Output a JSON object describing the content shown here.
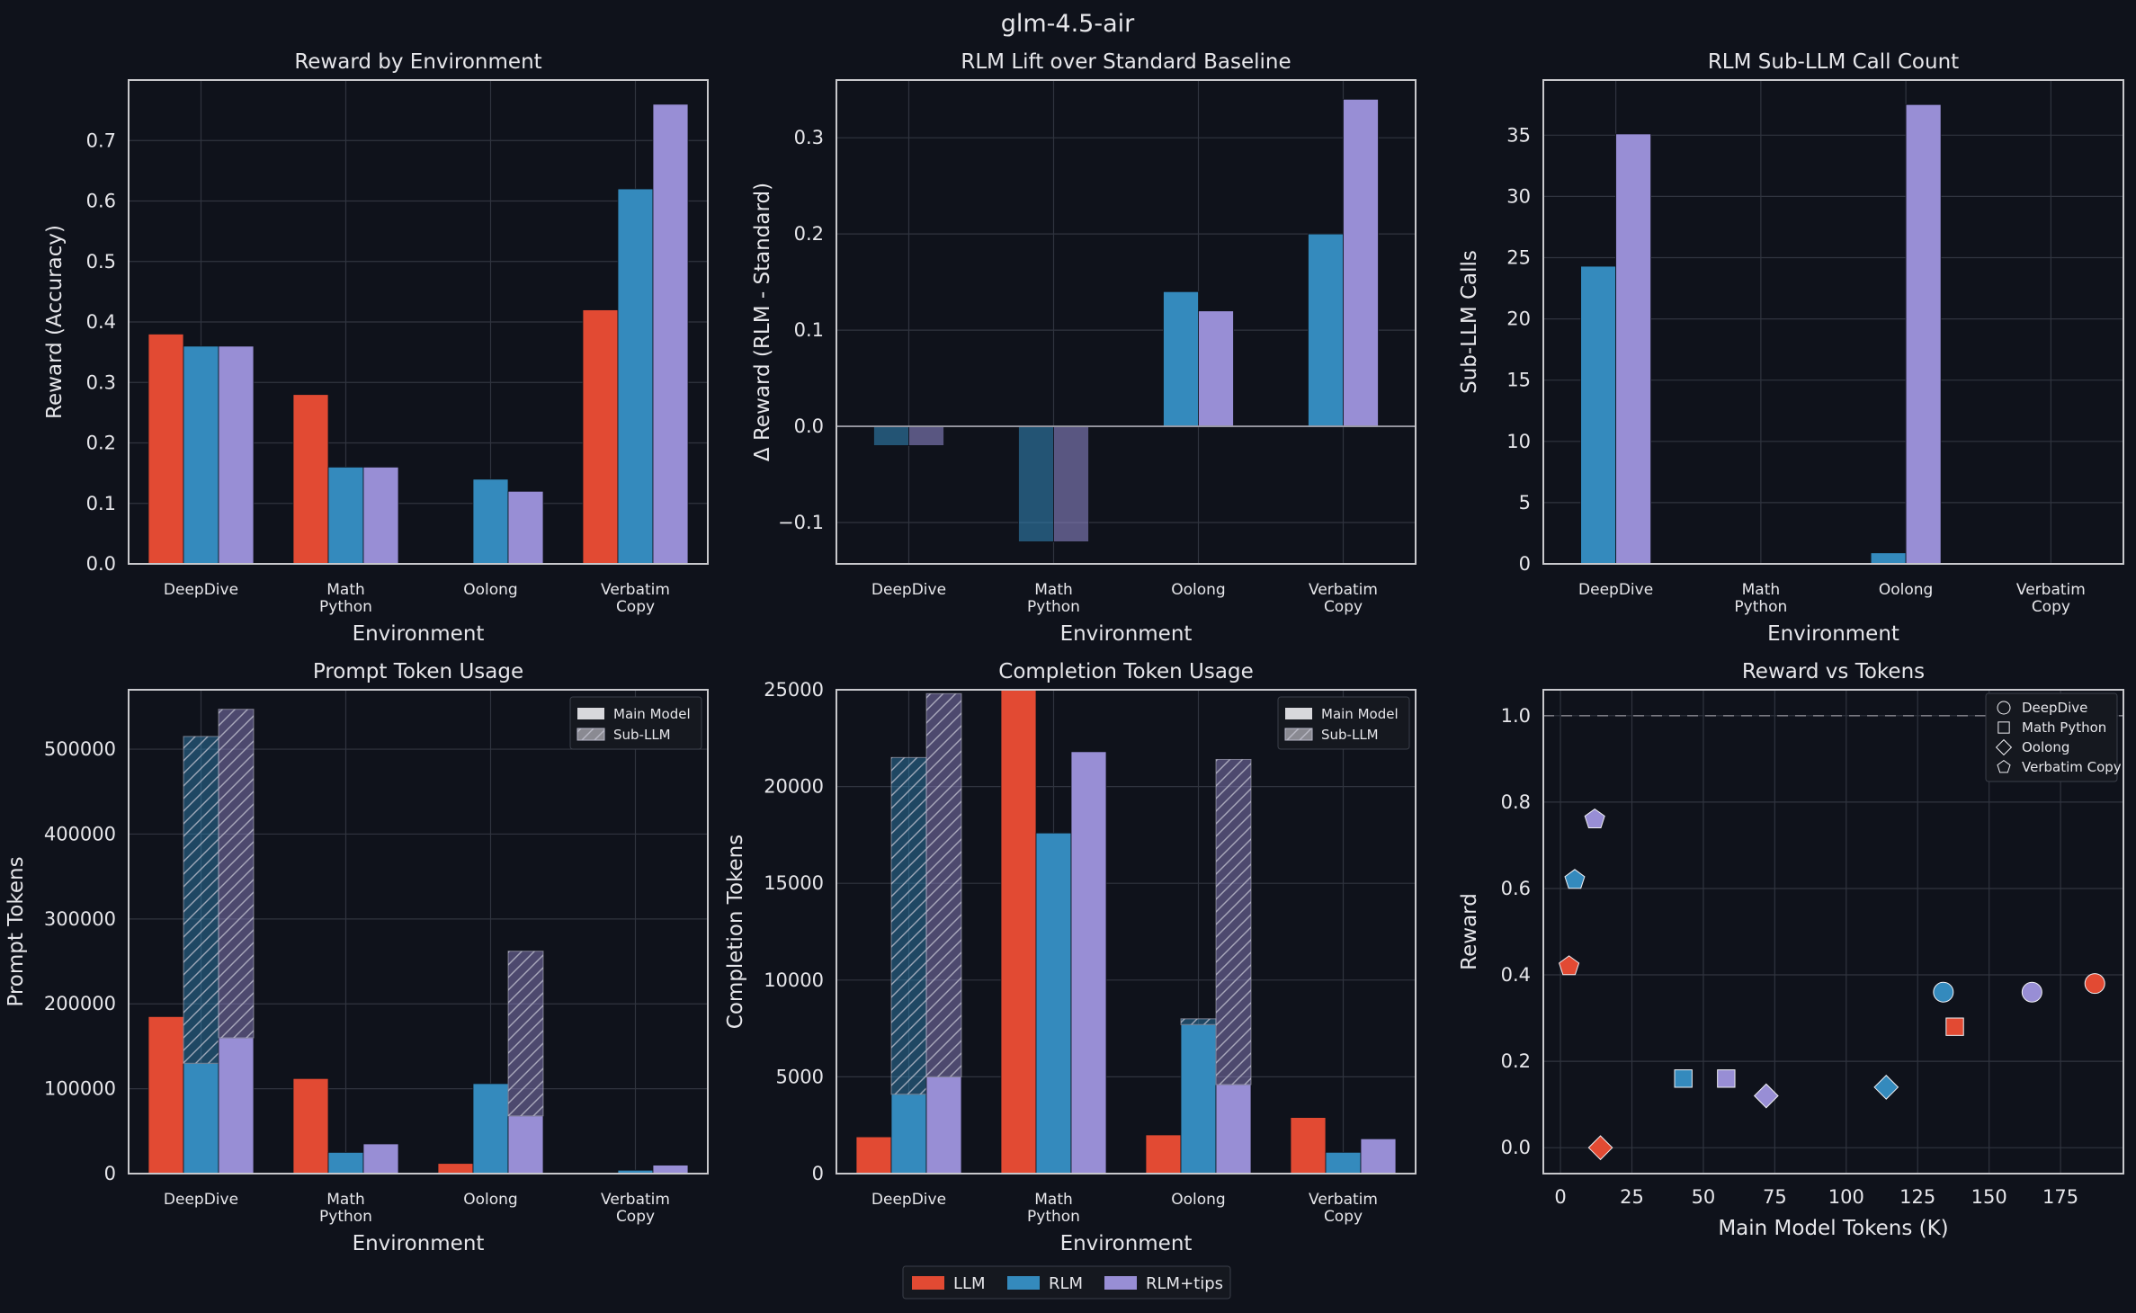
{
  "figure_title": "glm-4.5-air",
  "colors": {
    "LLM": "#e24a33",
    "RLM": "#348abd",
    "RLM+tips": "#988ed5",
    "background": "#0f121b",
    "grid": "#30343f"
  },
  "bottom_legend": {
    "entries": [
      "LLM",
      "RLM",
      "RLM+tips"
    ]
  },
  "chart_data": [
    {
      "id": "reward",
      "type": "bar",
      "title": "Reward by Environment",
      "xlabel": "Environment",
      "ylabel": "Reward (Accuracy)",
      "categories": [
        [
          "DeepDive"
        ],
        [
          "Math",
          "Python"
        ],
        [
          "Oolong"
        ],
        [
          "Verbatim",
          "Copy"
        ]
      ],
      "ylim": [
        0,
        0.8
      ],
      "yticks": [
        0.0,
        0.1,
        0.2,
        0.3,
        0.4,
        0.5,
        0.6,
        0.7
      ],
      "ytick_labels": [
        "0.0",
        "0.1",
        "0.2",
        "0.3",
        "0.4",
        "0.5",
        "0.6",
        "0.7"
      ],
      "series": [
        {
          "name": "LLM",
          "values": [
            0.38,
            0.28,
            0.0,
            0.42
          ]
        },
        {
          "name": "RLM",
          "values": [
            0.36,
            0.16,
            0.14,
            0.62
          ]
        },
        {
          "name": "RLM+tips",
          "values": [
            0.36,
            0.16,
            0.12,
            0.76
          ]
        }
      ]
    },
    {
      "id": "lift",
      "type": "bar",
      "title": "RLM Lift over Standard Baseline",
      "xlabel": "Environment",
      "ylabel": "Δ Reward (RLM - Standard)",
      "categories": [
        [
          "DeepDive"
        ],
        [
          "Math",
          "Python"
        ],
        [
          "Oolong"
        ],
        [
          "Verbatim",
          "Copy"
        ]
      ],
      "ylim": [
        -0.143,
        0.36
      ],
      "yticks": [
        -0.1,
        0.0,
        0.1,
        0.2,
        0.3
      ],
      "ytick_labels": [
        "−0.1",
        "0.0",
        "0.1",
        "0.2",
        "0.3"
      ],
      "zero_line": true,
      "series": [
        {
          "name": "RLM",
          "values": [
            -0.02,
            -0.12,
            0.14,
            0.2
          ]
        },
        {
          "name": "RLM+tips",
          "values": [
            -0.02,
            -0.12,
            0.12,
            0.34
          ]
        }
      ]
    },
    {
      "id": "subcalls",
      "type": "bar",
      "title": "RLM Sub-LLM Call Count",
      "xlabel": "Environment",
      "ylabel": "Sub-LLM Calls",
      "categories": [
        [
          "DeepDive"
        ],
        [
          "Math",
          "Python"
        ],
        [
          "Oolong"
        ],
        [
          "Verbatim",
          "Copy"
        ]
      ],
      "ylim": [
        0,
        39.5
      ],
      "yticks": [
        0,
        5,
        10,
        15,
        20,
        25,
        30,
        35
      ],
      "ytick_labels": [
        "0",
        "5",
        "10",
        "15",
        "20",
        "25",
        "30",
        "35"
      ],
      "series": [
        {
          "name": "RLM",
          "values": [
            24.3,
            0,
            0.9,
            0
          ]
        },
        {
          "name": "RLM+tips",
          "values": [
            35.1,
            0,
            37.5,
            0
          ]
        }
      ]
    },
    {
      "id": "prompt",
      "type": "bar",
      "stacked": true,
      "title": "Prompt Token Usage",
      "xlabel": "Environment",
      "ylabel": "Prompt Tokens",
      "categories": [
        [
          "DeepDive"
        ],
        [
          "Math",
          "Python"
        ],
        [
          "Oolong"
        ],
        [
          "Verbatim",
          "Copy"
        ]
      ],
      "ylim": [
        0,
        570000
      ],
      "yticks": [
        0,
        100000,
        200000,
        300000,
        400000,
        500000
      ],
      "ytick_labels": [
        "0",
        "100000",
        "200000",
        "300000",
        "400000",
        "500000"
      ],
      "legend": [
        "Main Model",
        "Sub-LLM"
      ],
      "series": [
        {
          "name": "LLM",
          "main": [
            185000,
            112000,
            12000,
            1000
          ],
          "sub": [
            0,
            0,
            0,
            0
          ]
        },
        {
          "name": "RLM",
          "main": [
            130000,
            25000,
            106000,
            4000
          ],
          "sub": [
            385000,
            0,
            0,
            0
          ]
        },
        {
          "name": "RLM+tips",
          "main": [
            160000,
            35000,
            68000,
            10000
          ],
          "sub": [
            387000,
            0,
            194000,
            0
          ]
        }
      ]
    },
    {
      "id": "completion",
      "type": "bar",
      "stacked": true,
      "title": "Completion Token Usage",
      "xlabel": "Environment",
      "ylabel": "Completion Tokens",
      "categories": [
        [
          "DeepDive"
        ],
        [
          "Math",
          "Python"
        ],
        [
          "Oolong"
        ],
        [
          "Verbatim",
          "Copy"
        ]
      ],
      "ylim": [
        0,
        25000
      ],
      "yticks": [
        0,
        5000,
        10000,
        15000,
        20000,
        25000
      ],
      "ytick_labels": [
        "0",
        "5000",
        "10000",
        "15000",
        "20000",
        "25000"
      ],
      "legend": [
        "Main Model",
        "Sub-LLM"
      ],
      "series": [
        {
          "name": "LLM",
          "main": [
            1900,
            25000,
            2000,
            2900
          ],
          "sub": [
            0,
            0,
            0,
            0
          ]
        },
        {
          "name": "RLM",
          "main": [
            4100,
            17600,
            7700,
            1100
          ],
          "sub": [
            17400,
            0,
            300,
            0
          ]
        },
        {
          "name": "RLM+tips",
          "main": [
            5000,
            21800,
            4600,
            1800
          ],
          "sub": [
            19800,
            0,
            16800,
            0
          ]
        }
      ]
    },
    {
      "id": "scatter",
      "type": "scatter",
      "title": "Reward vs Tokens",
      "xlabel": "Main Model Tokens (K)",
      "ylabel": "Reward",
      "xlim": [
        -6,
        197
      ],
      "ylim": [
        -0.06,
        1.06
      ],
      "xticks": [
        0,
        25,
        50,
        75,
        100,
        125,
        150,
        175
      ],
      "xtick_labels": [
        "0",
        "25",
        "50",
        "75",
        "100",
        "125",
        "150",
        "175"
      ],
      "yticks": [
        0.0,
        0.2,
        0.4,
        0.6,
        0.8,
        1.0
      ],
      "ytick_labels": [
        "0.0",
        "0.2",
        "0.4",
        "0.6",
        "0.8",
        "1.0"
      ],
      "reference_line": 1.0,
      "legend": [
        {
          "label": "DeepDive",
          "marker": "circle"
        },
        {
          "label": "Math Python",
          "marker": "square"
        },
        {
          "label": "Oolong",
          "marker": "diamond"
        },
        {
          "label": "Verbatim Copy",
          "marker": "pentagon"
        }
      ],
      "points": [
        {
          "env": "DeepDive",
          "series": "LLM",
          "x": 187,
          "y": 0.38
        },
        {
          "env": "DeepDive",
          "series": "RLM",
          "x": 134,
          "y": 0.36
        },
        {
          "env": "DeepDive",
          "series": "RLM+tips",
          "x": 165,
          "y": 0.36
        },
        {
          "env": "Math Python",
          "series": "LLM",
          "x": 138,
          "y": 0.28
        },
        {
          "env": "Math Python",
          "series": "RLM",
          "x": 43,
          "y": 0.16
        },
        {
          "env": "Math Python",
          "series": "RLM+tips",
          "x": 58,
          "y": 0.16
        },
        {
          "env": "Oolong",
          "series": "LLM",
          "x": 14,
          "y": 0.0
        },
        {
          "env": "Oolong",
          "series": "RLM",
          "x": 114,
          "y": 0.14
        },
        {
          "env": "Oolong",
          "series": "RLM+tips",
          "x": 72,
          "y": 0.12
        },
        {
          "env": "Verbatim Copy",
          "series": "LLM",
          "x": 3,
          "y": 0.42
        },
        {
          "env": "Verbatim Copy",
          "series": "RLM",
          "x": 5,
          "y": 0.62
        },
        {
          "env": "Verbatim Copy",
          "series": "RLM+tips",
          "x": 12,
          "y": 0.76
        }
      ]
    }
  ]
}
